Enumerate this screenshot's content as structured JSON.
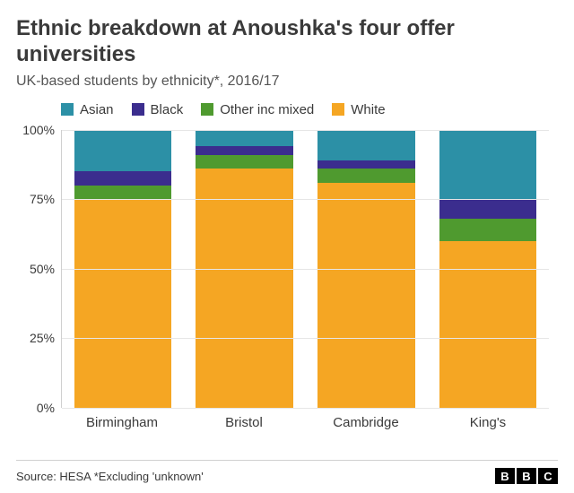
{
  "title": "Ethnic breakdown at Anoushka's four offer universities",
  "subtitle": "UK-based students by ethnicity*, 2016/17",
  "source": "Source: HESA    *Excluding 'unknown'",
  "logo_letters": [
    "B",
    "B",
    "C"
  ],
  "chart": {
    "type": "stacked-bar-100",
    "background_color": "#ffffff",
    "grid_color": "#e6e6e6",
    "axis_color": "#cfcfcf",
    "text_color": "#3a3a3a",
    "ylim": [
      0,
      100
    ],
    "ytick_step": 25,
    "ytick_labels": [
      "0%",
      "25%",
      "50%",
      "75%",
      "100%"
    ],
    "legend": [
      {
        "label": "Asian",
        "color": "#2c90a6"
      },
      {
        "label": "Black",
        "color": "#3b2d8e"
      },
      {
        "label": "Other inc mixed",
        "color": "#4f9a2f"
      },
      {
        "label": "White",
        "color": "#f5a623"
      }
    ],
    "categories": [
      "Birmingham",
      "Bristol",
      "Cambridge",
      "King's"
    ],
    "series_order": [
      "White",
      "Other inc mixed",
      "Black",
      "Asian"
    ],
    "colors": {
      "Asian": "#2c90a6",
      "Black": "#3b2d8e",
      "Other inc mixed": "#4f9a2f",
      "White": "#f5a623"
    },
    "data": [
      {
        "White": 75,
        "Other inc mixed": 5,
        "Black": 5,
        "Asian": 15
      },
      {
        "White": 86,
        "Other inc mixed": 5,
        "Black": 3,
        "Asian": 6
      },
      {
        "White": 81,
        "Other inc mixed": 5,
        "Black": 3,
        "Asian": 11
      },
      {
        "White": 60,
        "Other inc mixed": 8,
        "Black": 7,
        "Asian": 25
      }
    ]
  }
}
